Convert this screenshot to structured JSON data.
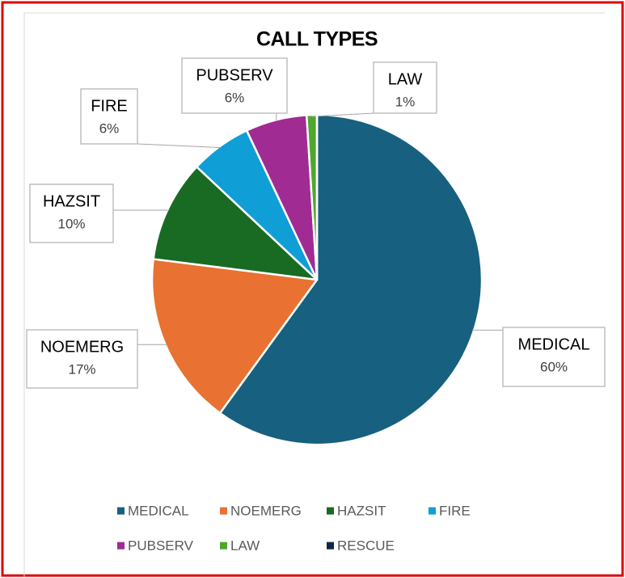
{
  "chart_data": {
    "type": "pie",
    "title": "CALL TYPES",
    "categories": [
      "MEDICAL",
      "NOEMERG",
      "HAZSIT",
      "FIRE",
      "PUBSERV",
      "LAW",
      "RESCUE"
    ],
    "values": [
      60,
      17,
      10,
      6,
      6,
      1,
      0
    ],
    "value_labels": [
      "60%",
      "17%",
      "10%",
      "6%",
      "6%",
      "1%",
      null
    ],
    "colors": [
      "#17607f",
      "#e97132",
      "#196b24",
      "#0f9ed5",
      "#a02b93",
      "#4ea72e",
      "#0e2841"
    ],
    "legend": "bottom"
  }
}
